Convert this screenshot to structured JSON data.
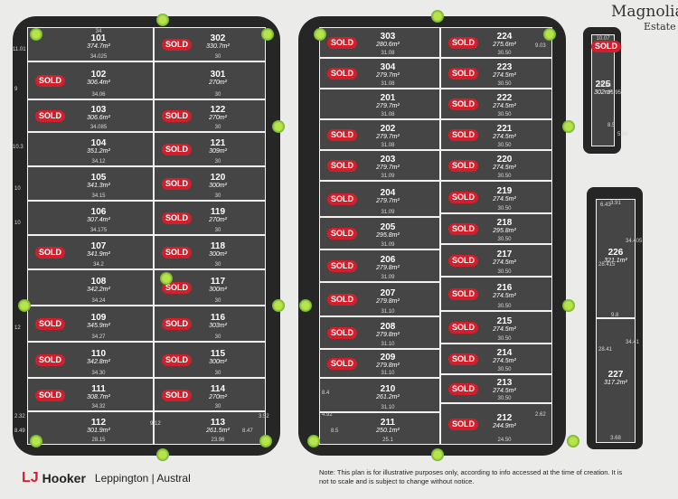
{
  "branding": {
    "lj": "LJ",
    "hooker": "Hooker",
    "location": "Leppington | Austral"
  },
  "estate": {
    "line1": "Magnolia",
    "line2": "Estate"
  },
  "note": "Note: This plan is for illustrative purposes only, according to info accessed at the time of creation. It is not to scale and is subject to change without notice.",
  "sold_label": "SOLD",
  "colors": {
    "lot_fill": "#454545",
    "road": "#262626",
    "sold_badge": "#d21f2b",
    "background": "#ebebea"
  },
  "lots": [
    {
      "id": "101",
      "area": "374.7m²",
      "front": "34",
      "back": "34.025",
      "sold": false
    },
    {
      "id": "102",
      "area": "306.4m²",
      "back": "34.06",
      "sold": true
    },
    {
      "id": "103",
      "area": "306.6m²",
      "back": "34.085",
      "sold": true
    },
    {
      "id": "104",
      "area": "351.2m²",
      "back": "34.12",
      "sold": false
    },
    {
      "id": "105",
      "area": "341.3m²",
      "back": "34.15",
      "sold": false
    },
    {
      "id": "106",
      "area": "307.4m²",
      "back": "34.175",
      "sold": false
    },
    {
      "id": "107",
      "area": "341.9m²",
      "back": "34.2",
      "sold": true
    },
    {
      "id": "108",
      "area": "342.2m²",
      "back": "34.24",
      "sold": false
    },
    {
      "id": "109",
      "area": "345.9m²",
      "back": "34.27",
      "sold": true
    },
    {
      "id": "110",
      "area": "342.8m²",
      "back": "34.30",
      "sold": true
    },
    {
      "id": "111",
      "area": "308.7m²",
      "back": "34.32",
      "sold": true
    },
    {
      "id": "112",
      "area": "301.9m²",
      "back": "28.15",
      "sold": false
    },
    {
      "id": "302",
      "area": "330.7m²",
      "back": "30",
      "sold": true
    },
    {
      "id": "301",
      "area": "270m²",
      "back": "30",
      "sold": false
    },
    {
      "id": "122",
      "area": "270m²",
      "back": "30",
      "sold": true
    },
    {
      "id": "121",
      "area": "309m²",
      "back": "30",
      "sold": true
    },
    {
      "id": "120",
      "area": "300m²",
      "back": "30",
      "sold": true
    },
    {
      "id": "119",
      "area": "270m²",
      "back": "30",
      "sold": true
    },
    {
      "id": "118",
      "area": "300m²",
      "back": "30",
      "sold": true
    },
    {
      "id": "117",
      "area": "300m²",
      "back": "30",
      "sold": true
    },
    {
      "id": "116",
      "area": "303m²",
      "back": "30",
      "sold": true
    },
    {
      "id": "115",
      "area": "300m²",
      "back": "30",
      "sold": true
    },
    {
      "id": "114",
      "area": "270m²",
      "back": "30",
      "sold": true
    },
    {
      "id": "113",
      "area": "261.5m²",
      "back": "23.96",
      "sold": false
    },
    {
      "id": "303",
      "area": "280.6m²",
      "back": "31.08",
      "sold": true
    },
    {
      "id": "304",
      "area": "279.7m²",
      "back": "31.08",
      "sold": true
    },
    {
      "id": "201",
      "area": "279.7m²",
      "back": "31.08",
      "sold": false
    },
    {
      "id": "202",
      "area": "279.7m²",
      "back": "31.08",
      "sold": true
    },
    {
      "id": "203",
      "area": "279.7m²",
      "back": "31.09",
      "sold": true
    },
    {
      "id": "204",
      "area": "279.7m²",
      "back": "31.09",
      "sold": true
    },
    {
      "id": "205",
      "area": "295.8m²",
      "back": "31.09",
      "sold": true
    },
    {
      "id": "206",
      "area": "279.8m²",
      "back": "31.09",
      "sold": true
    },
    {
      "id": "207",
      "area": "279.8m²",
      "back": "31.10",
      "sold": true
    },
    {
      "id": "208",
      "area": "279.8m²",
      "back": "31.10",
      "sold": true
    },
    {
      "id": "209",
      "area": "279.8m²",
      "back": "31.10",
      "sold": true
    },
    {
      "id": "210",
      "area": "261.2m²",
      "back": "31.10",
      "sold": false
    },
    {
      "id": "211",
      "area": "250.1m²",
      "back": "25.1",
      "sold": false
    },
    {
      "id": "224",
      "area": "275.6m²",
      "back": "30.50",
      "sold": true
    },
    {
      "id": "223",
      "area": "274.5m²",
      "back": "30.50",
      "sold": true
    },
    {
      "id": "222",
      "area": "274.5m²",
      "back": "30.50",
      "sold": true
    },
    {
      "id": "221",
      "area": "274.5m²",
      "back": "30.50",
      "sold": true
    },
    {
      "id": "220",
      "area": "274.5m²",
      "back": "30.50",
      "sold": true
    },
    {
      "id": "219",
      "area": "274.5m²",
      "back": "30.50",
      "sold": true
    },
    {
      "id": "218",
      "area": "295.8m²",
      "back": "30.50",
      "sold": true
    },
    {
      "id": "217",
      "area": "274.5m²",
      "back": "30.50",
      "sold": true
    },
    {
      "id": "216",
      "area": "274.5m²",
      "back": "30.50",
      "sold": true
    },
    {
      "id": "215",
      "area": "274.5m²",
      "back": "30.50",
      "sold": true
    },
    {
      "id": "214",
      "area": "274.5m²",
      "back": "30.50",
      "sold": true
    },
    {
      "id": "213",
      "area": "274.5m²",
      "back": "30.50",
      "sold": true
    },
    {
      "id": "212",
      "area": "244.9m²",
      "back": "24.50",
      "sold": true
    },
    {
      "id": "225",
      "area": "302m²",
      "front": "10.07",
      "sold": true
    },
    {
      "id": "226",
      "area": "321.1m²",
      "front": "3.91",
      "sold": false
    },
    {
      "id": "227",
      "area": "317.2m²",
      "back": "3.68",
      "sold": false
    }
  ],
  "dimensions": [
    "11.01",
    "9",
    "10.3",
    "10",
    "10",
    "12",
    "8.49",
    "2.32",
    "9.12",
    "8.47",
    "3.52",
    "9.03",
    "8.4",
    "4.92",
    "2.62",
    "8.5",
    "9.8",
    "25.54",
    "31.95",
    "5.96",
    "8.5",
    "6.43",
    "28.415",
    "34.405",
    "28.41",
    "34.41"
  ]
}
